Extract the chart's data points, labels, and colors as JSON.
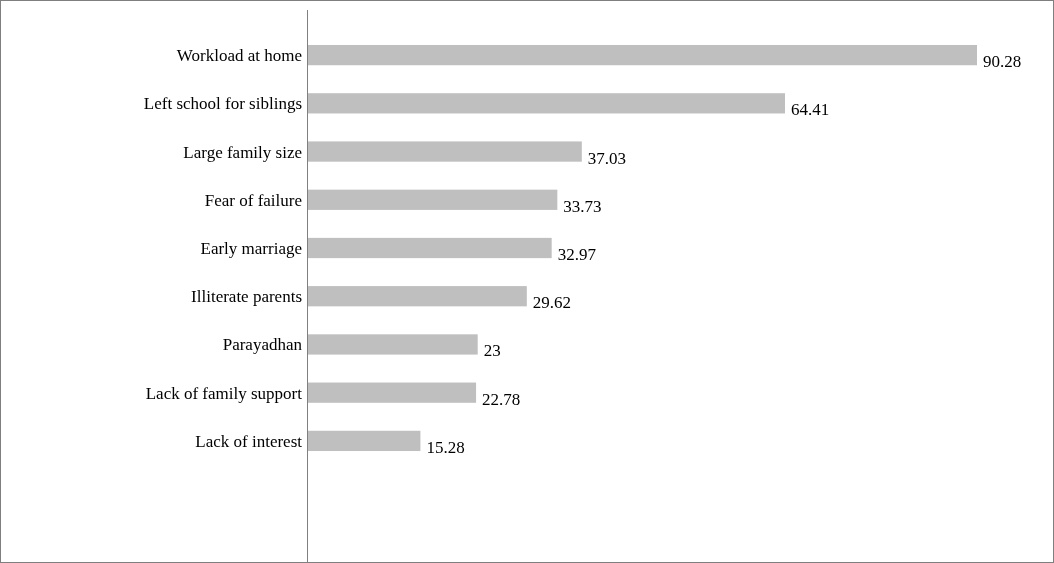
{
  "chart_data": {
    "type": "bar",
    "orientation": "horizontal",
    "categories": [
      "Workload at home",
      "Left school for siblings",
      "Large family size",
      "Fear of failure",
      "Early marriage",
      "Illiterate parents",
      "Parayadhan",
      "Lack of family support",
      "Lack of interest"
    ],
    "values": [
      90.28,
      64.41,
      37.03,
      33.73,
      32.97,
      29.62,
      23,
      22.78,
      15.28
    ],
    "color": "#bfbfbf",
    "data_labels": true
  }
}
